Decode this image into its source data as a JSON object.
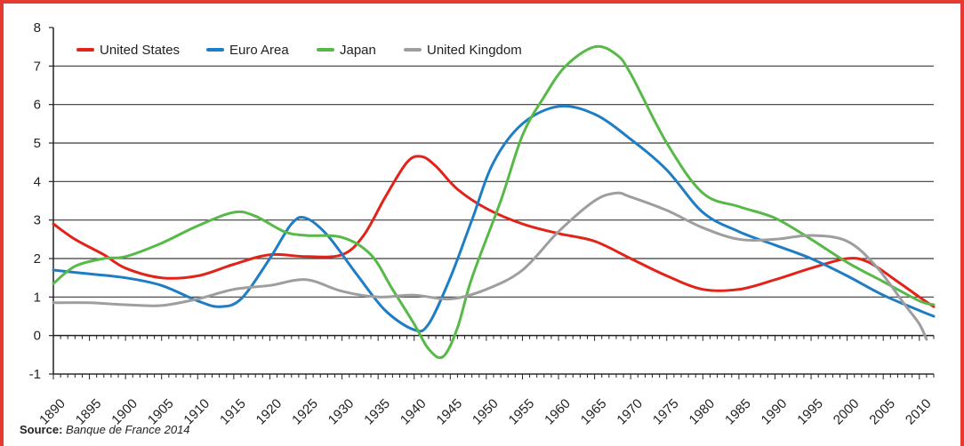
{
  "chart_data": {
    "type": "line",
    "title": "",
    "xlabel": "",
    "ylabel": "",
    "xlim": [
      1890,
      2012
    ],
    "ylim": [
      -1,
      8
    ],
    "y_ticks": [
      "8",
      "7",
      "6",
      "5",
      "4",
      "3",
      "2",
      "1",
      "0",
      "-1"
    ],
    "x_ticks": [
      "1890",
      "1895",
      "1900",
      "1905",
      "1910",
      "1915",
      "1920",
      "1925",
      "1930",
      "1935",
      "1940",
      "1945",
      "1950",
      "1955",
      "1960",
      "1965",
      "1970",
      "1975",
      "1980",
      "1985",
      "1990",
      "1995",
      "2000",
      "2005",
      "2010"
    ],
    "grid": "horizontal",
    "legend_position": "top-left",
    "series": [
      {
        "name": "United States",
        "color": "#e2231a",
        "points": [
          [
            1890,
            2.9
          ],
          [
            1893,
            2.5
          ],
          [
            1897,
            2.1
          ],
          [
            1900,
            1.75
          ],
          [
            1905,
            1.5
          ],
          [
            1910,
            1.55
          ],
          [
            1915,
            1.85
          ],
          [
            1920,
            2.1
          ],
          [
            1925,
            2.05
          ],
          [
            1930,
            2.1
          ],
          [
            1933,
            2.6
          ],
          [
            1936,
            3.6
          ],
          [
            1939,
            4.5
          ],
          [
            1941,
            4.65
          ],
          [
            1943,
            4.4
          ],
          [
            1946,
            3.8
          ],
          [
            1950,
            3.3
          ],
          [
            1955,
            2.9
          ],
          [
            1960,
            2.65
          ],
          [
            1965,
            2.45
          ],
          [
            1970,
            2.0
          ],
          [
            1975,
            1.55
          ],
          [
            1980,
            1.2
          ],
          [
            1985,
            1.2
          ],
          [
            1990,
            1.45
          ],
          [
            1995,
            1.75
          ],
          [
            2000,
            2.0
          ],
          [
            2003,
            1.9
          ],
          [
            2007,
            1.4
          ],
          [
            2010,
            1.0
          ],
          [
            2012,
            0.75
          ]
        ]
      },
      {
        "name": "Euro Area",
        "color": "#1f7dc4",
        "points": [
          [
            1890,
            1.7
          ],
          [
            1895,
            1.6
          ],
          [
            1900,
            1.5
          ],
          [
            1905,
            1.3
          ],
          [
            1910,
            0.9
          ],
          [
            1913,
            0.75
          ],
          [
            1916,
            0.95
          ],
          [
            1920,
            2.0
          ],
          [
            1923,
            2.9
          ],
          [
            1925,
            3.05
          ],
          [
            1928,
            2.6
          ],
          [
            1932,
            1.6
          ],
          [
            1936,
            0.65
          ],
          [
            1940,
            0.15
          ],
          [
            1942,
            0.3
          ],
          [
            1945,
            1.5
          ],
          [
            1948,
            3.0
          ],
          [
            1951,
            4.5
          ],
          [
            1955,
            5.5
          ],
          [
            1960,
            5.95
          ],
          [
            1965,
            5.75
          ],
          [
            1970,
            5.1
          ],
          [
            1975,
            4.3
          ],
          [
            1980,
            3.2
          ],
          [
            1985,
            2.7
          ],
          [
            1990,
            2.35
          ],
          [
            1995,
            2.0
          ],
          [
            2000,
            1.55
          ],
          [
            2005,
            1.05
          ],
          [
            2010,
            0.65
          ],
          [
            2012,
            0.5
          ]
        ]
      },
      {
        "name": "Japan",
        "color": "#57b947",
        "points": [
          [
            1890,
            1.35
          ],
          [
            1893,
            1.8
          ],
          [
            1897,
            2.0
          ],
          [
            1900,
            2.05
          ],
          [
            1905,
            2.4
          ],
          [
            1910,
            2.85
          ],
          [
            1915,
            3.2
          ],
          [
            1918,
            3.1
          ],
          [
            1922,
            2.7
          ],
          [
            1925,
            2.6
          ],
          [
            1930,
            2.55
          ],
          [
            1934,
            2.1
          ],
          [
            1937,
            1.2
          ],
          [
            1940,
            0.3
          ],
          [
            1942,
            -0.35
          ],
          [
            1944,
            -0.55
          ],
          [
            1946,
            0.2
          ],
          [
            1948,
            1.5
          ],
          [
            1952,
            3.5
          ],
          [
            1955,
            5.2
          ],
          [
            1958,
            6.2
          ],
          [
            1961,
            7.0
          ],
          [
            1965,
            7.5
          ],
          [
            1968,
            7.3
          ],
          [
            1970,
            6.8
          ],
          [
            1975,
            5.0
          ],
          [
            1980,
            3.7
          ],
          [
            1985,
            3.35
          ],
          [
            1990,
            3.05
          ],
          [
            1995,
            2.5
          ],
          [
            2000,
            1.9
          ],
          [
            2005,
            1.4
          ],
          [
            2010,
            0.9
          ],
          [
            2012,
            0.8
          ]
        ]
      },
      {
        "name": "United Kingdom",
        "color": "#9e9e9e",
        "points": [
          [
            1890,
            0.85
          ],
          [
            1895,
            0.85
          ],
          [
            1900,
            0.8
          ],
          [
            1905,
            0.78
          ],
          [
            1910,
            0.95
          ],
          [
            1915,
            1.2
          ],
          [
            1920,
            1.3
          ],
          [
            1925,
            1.45
          ],
          [
            1930,
            1.15
          ],
          [
            1935,
            1.0
          ],
          [
            1940,
            1.05
          ],
          [
            1945,
            0.95
          ],
          [
            1950,
            1.2
          ],
          [
            1955,
            1.7
          ],
          [
            1960,
            2.7
          ],
          [
            1965,
            3.5
          ],
          [
            1968,
            3.7
          ],
          [
            1970,
            3.6
          ],
          [
            1975,
            3.25
          ],
          [
            1980,
            2.8
          ],
          [
            1985,
            2.5
          ],
          [
            1990,
            2.5
          ],
          [
            1995,
            2.6
          ],
          [
            2000,
            2.45
          ],
          [
            2004,
            1.8
          ],
          [
            2008,
            0.8
          ],
          [
            2010,
            0.3
          ],
          [
            2011,
            -0.1
          ]
        ]
      }
    ]
  },
  "source": {
    "label": "Source:",
    "text": "Banque de France 2014"
  }
}
